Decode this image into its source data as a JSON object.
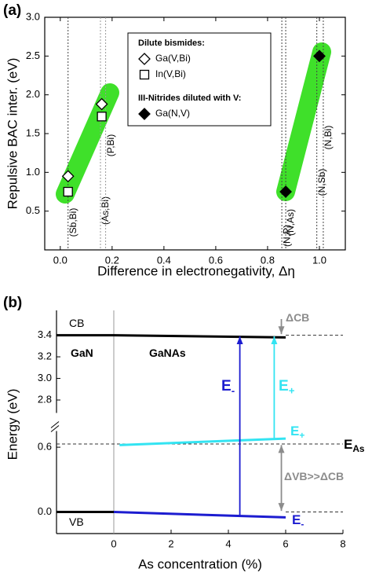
{
  "chart_data": [
    {
      "type": "scatter",
      "panel": "(a)",
      "x_label": "Difference in electronegativity, Δη",
      "y_label": "Repulsive BAC inter. (eV)",
      "xlim": [
        -0.06,
        1.1
      ],
      "ylim": [
        0,
        3
      ],
      "xticks": [
        {
          "value": 0,
          "label": "0.0"
        },
        0.2,
        0.4,
        0.6,
        0.8,
        {
          "value": 1,
          "label": "1.0"
        }
      ],
      "yticks": [
        0.5,
        {
          "value": 1,
          "label": "1.0"
        },
        1.5,
        {
          "value": 2,
          "label": "2.0"
        },
        2.5,
        {
          "value": 3,
          "label": "3.0"
        }
      ],
      "legend_headings": [
        "Dilute bismides:",
        "III-Nitrides diluted with V:"
      ],
      "series": [
        {
          "name": "Ga(V,Bi)",
          "marker": "diamond-open",
          "color": "#000000",
          "x": [
            0.03,
            0.16
          ],
          "values": [
            0.95,
            1.88
          ]
        },
        {
          "name": "In(V,Bi)",
          "marker": "square-open",
          "color": "#000000",
          "x": [
            0.03,
            0.16
          ],
          "values": [
            0.75,
            1.72
          ]
        },
        {
          "name": "Ga(N,V)",
          "marker": "diamond-filled",
          "color": "#000000",
          "x": [
            0.87,
            1.0
          ],
          "values": [
            0.75,
            2.5
          ]
        }
      ],
      "ref_lines": [
        {
          "x": 0.03,
          "label": "(Sb,Bi)"
        },
        {
          "x": 0.155,
          "label": "(As,Bi)"
        },
        {
          "x": 0.175,
          "label": "(P,Bi)"
        },
        {
          "x": 0.855,
          "label": "(N,P)"
        },
        {
          "x": 0.87,
          "label": "(N,As)"
        },
        {
          "x": 0.99,
          "label": "(N,Sb)"
        },
        {
          "x": 1.015,
          "label": "(N,Bi)"
        }
      ]
    },
    {
      "type": "line",
      "panel": "(b)",
      "x_label": "As concentration (%)",
      "y_label": "Energy (eV)",
      "xlim": [
        -2,
        8
      ],
      "ylim": [
        -0.2,
        3.63
      ],
      "ybreak": [
        0.75,
        2.68
      ],
      "xticks": [
        0,
        2,
        4,
        6,
        8
      ],
      "yticks": [
        {
          "value": 0,
          "label": "0.0"
        },
        0.6,
        2.8,
        {
          "value": 3,
          "label": "3.0"
        },
        3.2,
        3.4
      ],
      "series": [
        {
          "color": "#000000",
          "x": [
            -2,
            0
          ],
          "values": [
            3.4,
            3.4
          ]
        },
        {
          "color": "#000000",
          "x": [
            -2,
            0
          ],
          "values": [
            0,
            0
          ]
        },
        {
          "color": "#000000",
          "x": [
            0,
            6
          ],
          "values": [
            3.4,
            3.38
          ]
        },
        {
          "color": "#33e4f2",
          "x": [
            0.2,
            6
          ],
          "values": [
            0.62,
            0.68
          ]
        },
        {
          "color": "#1c1cd0",
          "x": [
            0,
            6
          ],
          "values": [
            0,
            -0.05
          ]
        }
      ],
      "hlines": [
        {
          "y": 3.4,
          "x": [
            6,
            8
          ]
        },
        {
          "y": 0.63,
          "x": [
            -2,
            8
          ]
        },
        {
          "y": 0,
          "x": [
            6,
            8
          ]
        }
      ],
      "vlines": [
        0
      ],
      "arrows": [
        {
          "x": 4.4,
          "y": [
            -0.03,
            3.39
          ],
          "color": "#1c1cd0",
          "heads": "end"
        },
        {
          "x": 5.6,
          "y": [
            0.67,
            3.39
          ],
          "color": "#33e4f2",
          "heads": "end"
        },
        {
          "x": 5.85,
          "y": [
            3.55,
            3.41
          ],
          "color": "#8c8c8c",
          "heads": "end"
        },
        {
          "x": 5.85,
          "y": [
            0.01,
            0.62
          ],
          "color": "#8c8c8c",
          "heads": "both"
        }
      ],
      "annotations": [
        {
          "text": "CB"
        },
        {
          "text": "VB"
        },
        {
          "text": "GaN"
        },
        {
          "text": "GaNAs"
        },
        {
          "text": "E",
          "sub": "-"
        },
        {
          "text": "E",
          "sub": "+"
        },
        {
          "text": "E",
          "sub": "+"
        },
        {
          "text": "E",
          "sub": "-"
        },
        {
          "text": "E",
          "sub": "As"
        },
        {
          "text": "ΔCB"
        },
        {
          "text": "ΔVB>>ΔCB"
        }
      ]
    }
  ]
}
